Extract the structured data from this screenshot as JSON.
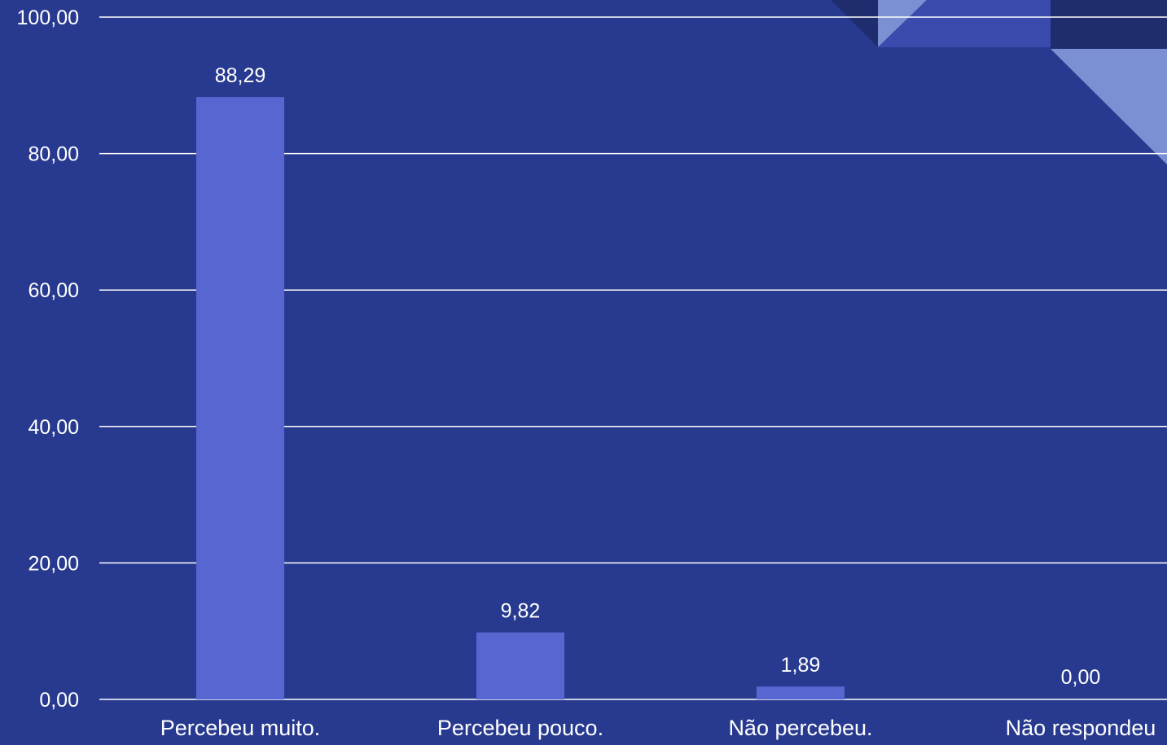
{
  "colors": {
    "background": "#283a8f",
    "bar": "#5766d0",
    "grid": "#ffffff",
    "text": "#ffffff",
    "deco_dark": "#1f2d6e",
    "deco_light": "#7a90d2",
    "deco_mid": "#3a4aad"
  },
  "chart_data": {
    "type": "bar",
    "title": "",
    "xlabel": "",
    "ylabel": "",
    "categories": [
      "Percebeu muito.",
      "Percebeu pouco.",
      "Não percebeu.",
      "Não respondeu"
    ],
    "values": [
      88.29,
      9.82,
      1.89,
      0.0
    ],
    "value_labels": [
      "88,29",
      "9,82",
      "1,89",
      "0,00"
    ],
    "ylim": [
      0,
      100
    ],
    "yticks": [
      0,
      20,
      40,
      60,
      80,
      100
    ],
    "ytick_labels": [
      "0,00",
      "20,00",
      "40,00",
      "60,00",
      "80,00",
      "100,00"
    ],
    "grid": true,
    "legend": "none"
  }
}
